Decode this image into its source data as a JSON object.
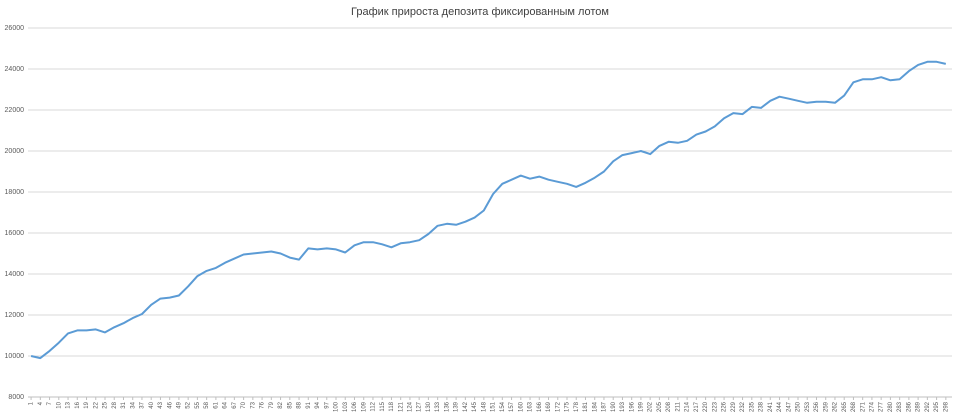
{
  "chart_data": {
    "type": "line",
    "title": "График прироста депозита фиксированным лотом",
    "x": [
      1,
      4,
      7,
      10,
      13,
      16,
      19,
      22,
      25,
      28,
      31,
      34,
      37,
      40,
      43,
      46,
      49,
      52,
      55,
      58,
      61,
      64,
      67,
      70,
      73,
      76,
      79,
      82,
      85,
      88,
      91,
      94,
      97,
      100,
      103,
      106,
      109,
      112,
      115,
      118,
      121,
      124,
      127,
      130,
      133,
      136,
      139,
      142,
      145,
      148,
      151,
      154,
      157,
      160,
      163,
      166,
      169,
      172,
      175,
      178,
      181,
      184,
      187,
      190,
      193,
      196,
      199,
      202,
      205,
      208,
      211,
      214,
      217,
      220,
      223,
      226,
      229,
      232,
      235,
      238,
      241,
      244,
      247,
      250,
      253,
      256,
      259,
      262,
      265,
      268,
      271,
      274,
      277,
      280,
      283,
      286,
      289,
      292,
      295,
      298
    ],
    "series": [
      {
        "color": "#5b9bd5",
        "values": [
          10000,
          9900,
          10250,
          10650,
          11100,
          11250,
          11250,
          11300,
          11150,
          11400,
          11600,
          11850,
          12050,
          12500,
          12800,
          12850,
          12950,
          13400,
          13900,
          14150,
          14300,
          14550,
          14750,
          14950,
          15000,
          15050,
          15100,
          15000,
          14800,
          14700,
          15250,
          15200,
          15250,
          15200,
          15050,
          15400,
          15550,
          15550,
          15450,
          15300,
          15500,
          15550,
          15650,
          15950,
          16350,
          16450,
          16400,
          16550,
          16750,
          17100,
          17900,
          18400,
          18600,
          18800,
          18650,
          18750,
          18600,
          18500,
          18400,
          18250,
          18450,
          18700,
          19000,
          19500,
          19800,
          19900,
          20000,
          19850,
          20250,
          20450,
          20400,
          20500,
          20800,
          20950,
          21200,
          21600,
          21850,
          21800,
          22150,
          22100,
          22450,
          22650,
          22550,
          22450,
          22350,
          22400,
          22400,
          22350,
          22700,
          23350,
          23500,
          23500,
          23600,
          23450,
          23500,
          23900,
          24200,
          24350,
          24350,
          24250
        ]
      }
    ],
    "xlim": [
      0,
      300
    ],
    "xticks": [
      1,
      4,
      7,
      10,
      13,
      16,
      19,
      22,
      25,
      28,
      31,
      34,
      37,
      40,
      43,
      46,
      49,
      52,
      55,
      58,
      61,
      64,
      67,
      70,
      73,
      76,
      79,
      82,
      85,
      88,
      91,
      94,
      97,
      100,
      103,
      106,
      109,
      112,
      115,
      118,
      121,
      124,
      127,
      130,
      133,
      136,
      139,
      142,
      145,
      148,
      151,
      154,
      157,
      160,
      163,
      166,
      169,
      172,
      175,
      178,
      181,
      184,
      187,
      190,
      193,
      196,
      199,
      202,
      205,
      208,
      211,
      214,
      217,
      220,
      223,
      226,
      229,
      232,
      235,
      238,
      241,
      244,
      247,
      250,
      253,
      256,
      259,
      262,
      265,
      268,
      271,
      274,
      277,
      280,
      283,
      286,
      289,
      292,
      295,
      298
    ],
    "ylim": [
      8000,
      26000
    ],
    "yticks": [
      8000,
      10000,
      12000,
      14000,
      16000,
      18000,
      20000,
      22000,
      24000,
      26000
    ],
    "grid": true
  }
}
